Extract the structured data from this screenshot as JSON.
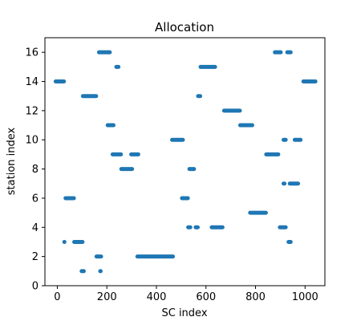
{
  "chart_data": {
    "type": "scatter",
    "title": "Allocation",
    "xlabel": "SC index",
    "ylabel": "station index",
    "xlim": [
      -50,
      1080
    ],
    "ylim": [
      0,
      17
    ],
    "xticks": [
      0,
      200,
      400,
      600,
      800,
      1000
    ],
    "yticks": [
      0,
      2,
      4,
      6,
      8,
      10,
      12,
      14,
      16
    ],
    "grid": false,
    "marker_color": "#1f77b4",
    "segments": [
      {
        "station": 1,
        "x_start": 95,
        "x_end": 110
      },
      {
        "station": 1,
        "x_start": 170,
        "x_end": 178
      },
      {
        "station": 2,
        "x_start": 155,
        "x_end": 180
      },
      {
        "station": 2,
        "x_start": 320,
        "x_end": 470
      },
      {
        "station": 3,
        "x_start": 25,
        "x_end": 32
      },
      {
        "station": 3,
        "x_start": 65,
        "x_end": 105
      },
      {
        "station": 3,
        "x_start": 930,
        "x_end": 945
      },
      {
        "station": 4,
        "x_start": 525,
        "x_end": 540
      },
      {
        "station": 4,
        "x_start": 555,
        "x_end": 570
      },
      {
        "station": 4,
        "x_start": 620,
        "x_end": 670
      },
      {
        "station": 4,
        "x_start": 895,
        "x_end": 925
      },
      {
        "station": 5,
        "x_start": 775,
        "x_end": 845
      },
      {
        "station": 6,
        "x_start": 30,
        "x_end": 70
      },
      {
        "station": 6,
        "x_start": 500,
        "x_end": 530
      },
      {
        "station": 7,
        "x_start": 910,
        "x_end": 920
      },
      {
        "station": 7,
        "x_start": 935,
        "x_end": 975
      },
      {
        "station": 8,
        "x_start": 255,
        "x_end": 305
      },
      {
        "station": 8,
        "x_start": 530,
        "x_end": 555
      },
      {
        "station": 9,
        "x_start": 220,
        "x_end": 260
      },
      {
        "station": 9,
        "x_start": 295,
        "x_end": 330
      },
      {
        "station": 9,
        "x_start": 840,
        "x_end": 895
      },
      {
        "station": 10,
        "x_start": 460,
        "x_end": 510
      },
      {
        "station": 10,
        "x_start": 910,
        "x_end": 925
      },
      {
        "station": 10,
        "x_start": 955,
        "x_end": 985
      },
      {
        "station": 11,
        "x_start": 200,
        "x_end": 230
      },
      {
        "station": 11,
        "x_start": 735,
        "x_end": 790
      },
      {
        "station": 12,
        "x_start": 670,
        "x_end": 740
      },
      {
        "station": 13,
        "x_start": 100,
        "x_end": 160
      },
      {
        "station": 13,
        "x_start": 565,
        "x_end": 580
      },
      {
        "station": 14,
        "x_start": -10,
        "x_end": 30
      },
      {
        "station": 14,
        "x_start": 990,
        "x_end": 1045
      },
      {
        "station": 15,
        "x_start": 235,
        "x_end": 250
      },
      {
        "station": 15,
        "x_start": 575,
        "x_end": 640
      },
      {
        "station": 16,
        "x_start": 165,
        "x_end": 215
      },
      {
        "station": 16,
        "x_start": 875,
        "x_end": 905
      },
      {
        "station": 16,
        "x_start": 925,
        "x_end": 945
      }
    ]
  }
}
